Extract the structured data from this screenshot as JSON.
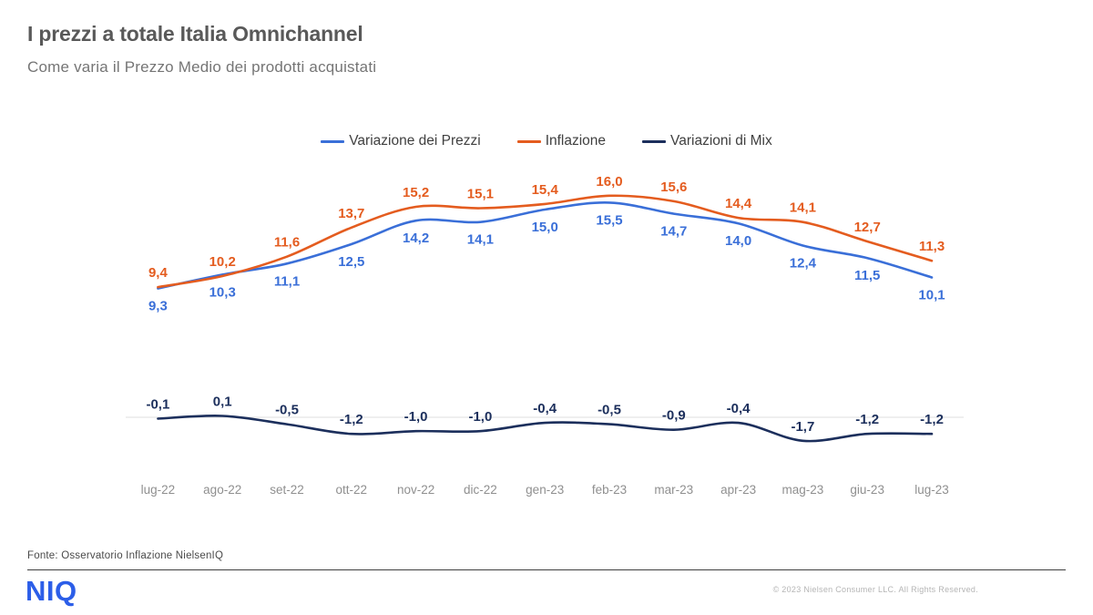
{
  "header": {
    "title": "I prezzi a totale Italia Omnichannel",
    "subtitle": "Come varia il Prezzo Medio dei prodotti acquistati"
  },
  "chart_data": {
    "type": "line",
    "title": "I prezzi a totale Italia Omnichannel",
    "categories": [
      "lug-22",
      "ago-22",
      "set-22",
      "ott-22",
      "nov-22",
      "dic-22",
      "gen-23",
      "feb-23",
      "mar-23",
      "apr-23",
      "mag-23",
      "giu-23",
      "lug-23"
    ],
    "series": [
      {
        "name": "Variazione dei Prezzi",
        "color": "#3a6fd8",
        "values": [
          9.3,
          10.3,
          11.1,
          12.5,
          14.2,
          14.1,
          15.0,
          15.5,
          14.7,
          14.0,
          12.4,
          11.5,
          10.1
        ],
        "label_position": "below"
      },
      {
        "name": "Inflazione",
        "color": "#e45c1f",
        "values": [
          9.4,
          10.2,
          11.6,
          13.7,
          15.2,
          15.1,
          15.4,
          16.0,
          15.6,
          14.4,
          14.1,
          12.7,
          11.3
        ],
        "label_position": "above"
      },
      {
        "name": "Variazioni di Mix",
        "color": "#1c2f5c",
        "values": [
          -0.1,
          0.1,
          -0.5,
          -1.2,
          -1.0,
          -1.0,
          -0.4,
          -0.5,
          -0.9,
          -0.4,
          -1.7,
          -1.2,
          -1.2
        ],
        "label_position": "above"
      }
    ],
    "ylim": [
      -2.5,
      18
    ],
    "grid": "zero-line-only",
    "zero_line_color": "#e5e5e5",
    "legend_position": "top-center",
    "decimal_separator": ","
  },
  "footer": {
    "source": "Fonte: Osservatorio Inflazione NielsenIQ",
    "logo": "NIQ",
    "logo_color": "#2c5ee8",
    "copyright": "© 2023  Nielsen Consumer LLC. All Rights Reserved."
  }
}
